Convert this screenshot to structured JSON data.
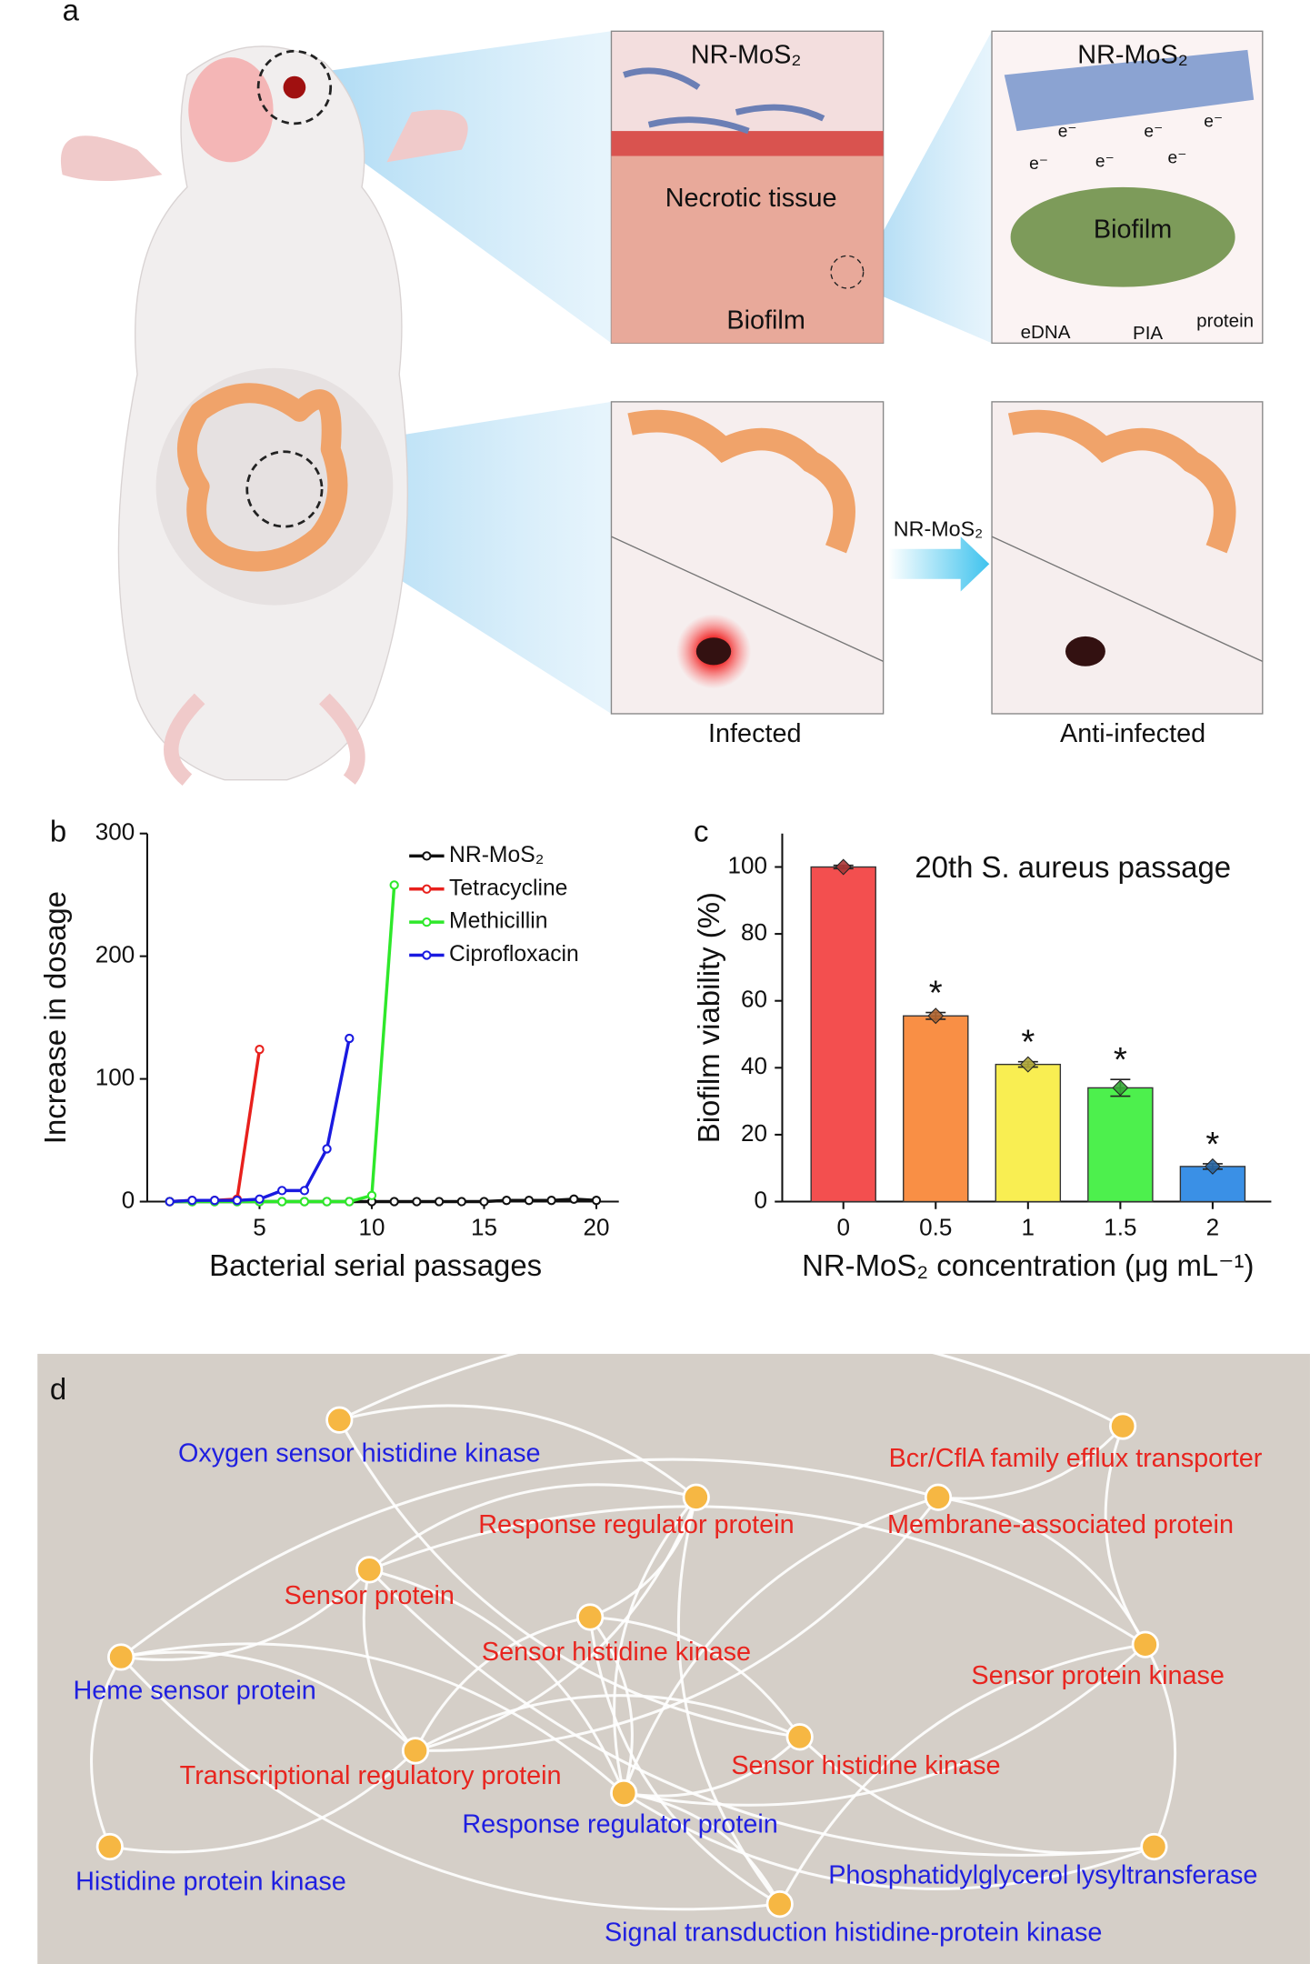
{
  "panel_a": {
    "label": "a",
    "box1_title": "NR-MoS₂",
    "necrotic": "Necrotic tissue",
    "biofilm1": "Biofilm",
    "box2_title": "NR-MoS₂",
    "electrons": [
      "e⁻",
      "e⁻",
      "e⁻",
      "e⁻",
      "e⁻",
      "e⁻"
    ],
    "biofilm2": "Biofilm",
    "eps": [
      "eDNA",
      "PIA",
      "protein"
    ],
    "arrow_label": "NR-MoS₂",
    "captions": [
      "Infected",
      "Anti-infected"
    ]
  },
  "chart_data": [
    {
      "type": "line",
      "panel_label": "b",
      "x_label": "Bacterial serial passages",
      "y_label": "Increase in dosage",
      "x": [
        1,
        2,
        3,
        4,
        5,
        6,
        7,
        8,
        9,
        10,
        11,
        12,
        13,
        14,
        15,
        16,
        17,
        18,
        19,
        20
      ],
      "xlim": [
        0,
        21
      ],
      "xticks": [
        5,
        10,
        15,
        20
      ],
      "ylim": [
        0,
        300
      ],
      "yticks": [
        0,
        100,
        200,
        300
      ],
      "series": [
        {
          "name": "NR-MoS₂",
          "color": "#111111",
          "values": [
            0,
            0,
            0,
            0,
            0,
            0,
            0,
            0,
            0,
            0,
            0,
            0,
            0,
            0,
            0,
            1,
            1,
            1,
            2,
            1
          ]
        },
        {
          "name": "Tetracycline",
          "color": "#e8201c",
          "values": [
            0,
            1,
            1,
            2,
            124,
            null,
            null,
            null,
            null,
            null,
            null,
            null,
            null,
            null,
            null,
            null,
            null,
            null,
            null,
            null
          ]
        },
        {
          "name": "Methicillin",
          "color": "#2ee82a",
          "values": [
            0,
            0,
            0,
            0,
            0,
            0,
            0,
            0,
            0,
            5,
            258,
            null,
            null,
            null,
            null,
            null,
            null,
            null,
            null,
            null
          ]
        },
        {
          "name": "Ciprofloxacin",
          "color": "#1a1ae0",
          "values": [
            0,
            1,
            1,
            1,
            2,
            9,
            9,
            43,
            133,
            null,
            null,
            null,
            null,
            null,
            null,
            null,
            null,
            null,
            null,
            null
          ]
        }
      ]
    },
    {
      "type": "bar",
      "panel_label": "c",
      "title": "20th S. aureus passage",
      "x_label": "NR-MoS₂ concentration (μg mL⁻¹)",
      "y_label": "Biofilm viability (%)",
      "categories": [
        "0",
        "0.5",
        "1",
        "1.5",
        "2"
      ],
      "values": [
        100,
        55.5,
        41,
        34,
        10.5
      ],
      "errors": [
        0.5,
        1,
        0.8,
        2.5,
        0.8
      ],
      "colors": [
        "#f34f4f",
        "#f98f45",
        "#f9ee52",
        "#4df04d",
        "#3a90e6"
      ],
      "significance": [
        null,
        "*",
        "*",
        "*",
        "*"
      ],
      "ylim": [
        0,
        110
      ],
      "yticks": [
        0,
        20,
        40,
        60,
        80,
        100
      ]
    }
  ],
  "panel_d": {
    "label": "d",
    "nodes": [
      {
        "label": "Oxygen sensor histidine kinase",
        "color": "#1f1fe0"
      },
      {
        "label": "Bcr/CflA family efflux transporter",
        "color": "#e8251f"
      },
      {
        "label": "Response regulator protein",
        "color": "#e8251f"
      },
      {
        "label": "Membrane-associated protein",
        "color": "#e8251f"
      },
      {
        "label": "Sensor protein",
        "color": "#e8251f"
      },
      {
        "label": "Sensor histidine kinase",
        "color": "#e8251f"
      },
      {
        "label": "Heme sensor protein",
        "color": "#1f1fe0"
      },
      {
        "label": "Sensor protein kinase",
        "color": "#e8251f"
      },
      {
        "label": "Transcriptional regulatory protein",
        "color": "#e8251f"
      },
      {
        "label": "Sensor histidine kinase",
        "color": "#e8251f"
      },
      {
        "label": "Response regulator protein",
        "color": "#1f1fe0"
      },
      {
        "label": "Histidine protein kinase",
        "color": "#1f1fe0"
      },
      {
        "label": "Phosphatidylglycerol lysyltransferase",
        "color": "#1f1fe0"
      },
      {
        "label": "Signal transduction histidine-protein kinase",
        "color": "#1f1fe0"
      }
    ]
  }
}
